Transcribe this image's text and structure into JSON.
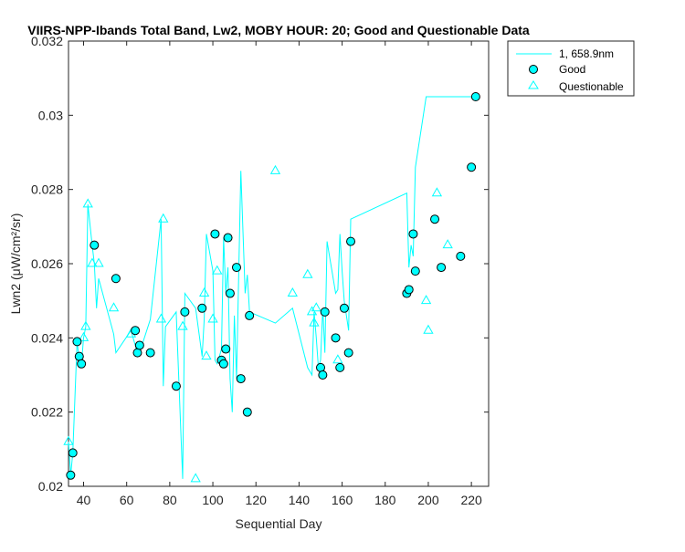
{
  "chart_data": {
    "type": "line",
    "title": "VIIRS-NPP-Ibands Total Band, Lw2, MOBY HOUR: 20;  Good and Questionable Data",
    "xlabel": "Sequential Day",
    "ylabel": "Lwn2 (μW/cm²/sr)",
    "xlim": [
      33,
      228
    ],
    "ylim": [
      0.02,
      0.032
    ],
    "x_ticks": [
      40,
      60,
      80,
      100,
      120,
      140,
      160,
      180,
      200,
      220
    ],
    "x_tick_labels": [
      "40",
      "60",
      "80",
      "100",
      "120",
      "140",
      "160",
      "180",
      "200",
      "220"
    ],
    "y_ticks": [
      0.02,
      0.022,
      0.024,
      0.026,
      0.028,
      0.03,
      0.032
    ],
    "y_tick_labels": [
      "0.02",
      "0.022",
      "0.024",
      "0.026",
      "0.028",
      "0.03",
      "0.032"
    ],
    "grid": false,
    "legend_position": "outside-top-right",
    "colors": {
      "series": "#00ffff",
      "marker_edge_good": "#000000",
      "axis": "#262626"
    },
    "series": [
      {
        "name": "1, 658.9nm",
        "kind": "line",
        "x": [
          33,
          34,
          35,
          37,
          38,
          39,
          40,
          41,
          42,
          44,
          45,
          46,
          47,
          54,
          55,
          62,
          64,
          65,
          66,
          71,
          76,
          77,
          78,
          83,
          86,
          87,
          92,
          95,
          96,
          97,
          100,
          101,
          102,
          104,
          105,
          106,
          107,
          108,
          109,
          110,
          111,
          113,
          115,
          116,
          117,
          129,
          137,
          144,
          146,
          147,
          148,
          149,
          150,
          151,
          152,
          153,
          157,
          158,
          159,
          160,
          161,
          163,
          164,
          190,
          191,
          192,
          193,
          194,
          199,
          200,
          202,
          203,
          204,
          206,
          209,
          215,
          220,
          222
        ],
        "y": [
          0.0212,
          0.0203,
          0.0209,
          0.0239,
          0.0234,
          0.0233,
          0.024,
          0.0243,
          0.0276,
          0.0265,
          0.026,
          0.0248,
          0.0256,
          0.0241,
          0.0236,
          0.0242,
          0.0238,
          0.0236,
          0.0236,
          0.0245,
          0.0272,
          0.0227,
          0.0243,
          0.0247,
          0.0202,
          0.0252,
          0.0248,
          0.0235,
          0.0245,
          0.0268,
          0.0258,
          0.0234,
          0.0233,
          0.0237,
          0.0267,
          0.0252,
          0.0259,
          0.0229,
          0.022,
          0.0246,
          0.0229,
          0.0285,
          0.0252,
          0.0257,
          0.0247,
          0.0244,
          0.0248,
          0.0232,
          0.023,
          0.0247,
          0.024,
          0.0232,
          0.0234,
          0.0248,
          0.0236,
          0.0266,
          0.0252,
          0.0253,
          0.0268,
          0.0258,
          0.025,
          0.0242,
          0.0272,
          0.0279,
          0.0259,
          0.0265,
          0.0262,
          0.0286,
          0.0305,
          0.0305,
          0.0305,
          0.0305,
          0.0305,
          0.0305,
          0.0305,
          0.0305,
          0.0305,
          0.0305
        ]
      },
      {
        "name": "Good",
        "kind": "markers",
        "marker": "circle",
        "x": [
          34,
          35,
          37,
          38,
          39,
          45,
          55,
          64,
          65,
          66,
          71,
          83,
          87,
          95,
          101,
          104,
          105,
          106,
          107,
          108,
          111,
          113,
          116,
          117,
          150,
          151,
          152,
          157,
          159,
          161,
          163,
          164,
          190,
          191,
          193,
          194,
          203,
          206,
          215,
          220,
          222
        ],
        "y": [
          0.0203,
          0.0209,
          0.0239,
          0.0235,
          0.0233,
          0.0265,
          0.0256,
          0.0242,
          0.0236,
          0.0238,
          0.0236,
          0.0227,
          0.0247,
          0.0248,
          0.0268,
          0.0234,
          0.0233,
          0.0237,
          0.0267,
          0.0252,
          0.0259,
          0.0229,
          0.022,
          0.0246,
          0.0232,
          0.023,
          0.0247,
          0.024,
          0.0232,
          0.0248,
          0.0236,
          0.0266,
          0.0252,
          0.0253,
          0.0268,
          0.0258,
          0.0272,
          0.0259,
          0.0262,
          0.0286,
          0.0305
        ]
      },
      {
        "name": "Questionable",
        "kind": "markers",
        "marker": "triangle",
        "x": [
          33,
          40,
          41,
          42,
          44,
          47,
          54,
          62,
          76,
          77,
          86,
          92,
          96,
          97,
          100,
          102,
          129,
          137,
          144,
          146,
          147,
          148,
          158,
          199,
          200,
          204,
          209
        ],
        "y": [
          0.0212,
          0.024,
          0.0243,
          0.0276,
          0.026,
          0.026,
          0.0248,
          0.0241,
          0.0245,
          0.0272,
          0.0243,
          0.0202,
          0.0252,
          0.0235,
          0.0245,
          0.0258,
          0.0285,
          0.0252,
          0.0257,
          0.0247,
          0.0244,
          0.0248,
          0.0234,
          0.025,
          0.0242,
          0.0279,
          0.0265
        ]
      }
    ]
  }
}
